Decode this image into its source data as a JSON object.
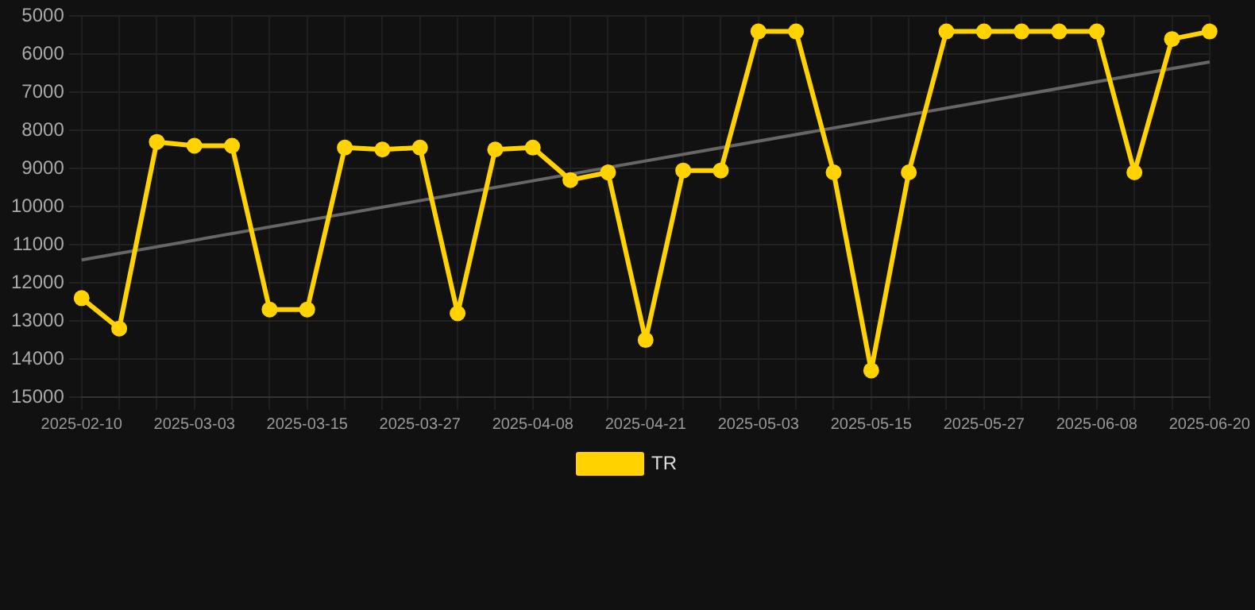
{
  "chart_data": {
    "type": "line",
    "categories": [
      "2025-02-10",
      null,
      null,
      "2025-03-03",
      null,
      null,
      "2025-03-15",
      null,
      null,
      "2025-03-27",
      null,
      null,
      "2025-04-08",
      null,
      null,
      "2025-04-21",
      null,
      null,
      "2025-05-03",
      null,
      null,
      "2025-05-15",
      null,
      null,
      "2025-05-27",
      null,
      null,
      "2025-06-08",
      null,
      null,
      "2025-06-20"
    ],
    "series": [
      {
        "name": "TR",
        "color": "#ffd200",
        "marker": "circle",
        "values": [
          12400,
          13200,
          8300,
          8400,
          8400,
          12700,
          12700,
          8450,
          8500,
          8450,
          12800,
          8500,
          8450,
          9300,
          9100,
          13500,
          9050,
          9050,
          5400,
          5400,
          9100,
          14300,
          9100,
          5400,
          5400,
          5400,
          5400,
          5400,
          9100,
          5600,
          5400
        ]
      },
      {
        "color": "#666666",
        "marker": "none",
        "values": [
          11400,
          null,
          null,
          null,
          null,
          null,
          null,
          null,
          null,
          null,
          null,
          null,
          null,
          null,
          null,
          null,
          null,
          null,
          null,
          null,
          null,
          null,
          null,
          null,
          null,
          null,
          null,
          null,
          null,
          null,
          6200
        ]
      }
    ],
    "ylim": [
      15000,
      5000
    ],
    "yticks": [
      5000,
      6000,
      7000,
      8000,
      9000,
      10000,
      11000,
      12000,
      13000,
      14000,
      15000
    ],
    "grid": true,
    "legend": "bottom",
    "line_style": "solid"
  }
}
